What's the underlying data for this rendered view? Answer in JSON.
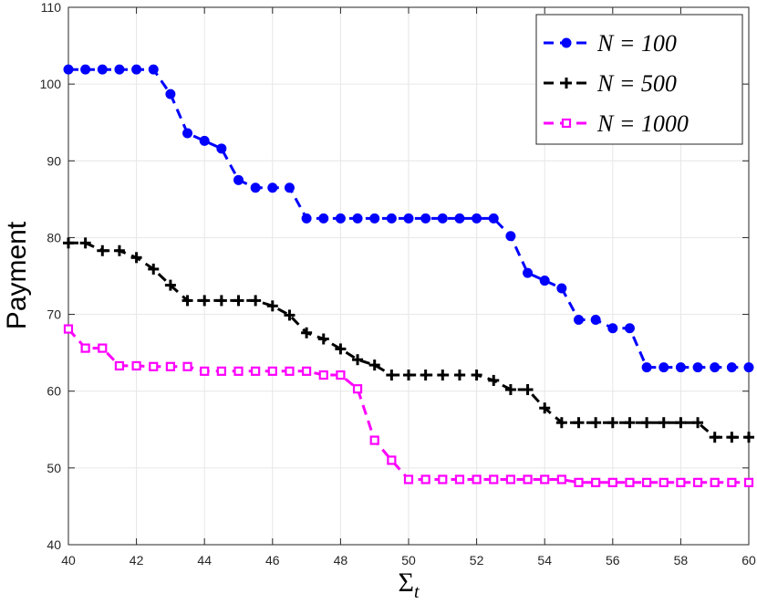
{
  "chart_data": {
    "type": "line",
    "xlabel": "Σ",
    "xlabel_subscript": "t",
    "ylabel": "Payment",
    "xlim": [
      40,
      60
    ],
    "ylim": [
      40,
      110
    ],
    "xticks": [
      40,
      42,
      44,
      46,
      48,
      50,
      52,
      54,
      56,
      58,
      60
    ],
    "yticks": [
      40,
      50,
      60,
      70,
      80,
      90,
      100,
      110
    ],
    "grid": true,
    "legend_position": "top-right",
    "series": [
      {
        "name": "N = 100",
        "color": "#0000ff",
        "marker": "filled-circle",
        "line": "dashed",
        "x": [
          40,
          40.5,
          41,
          41.5,
          42,
          42.5,
          43,
          43.5,
          44,
          44.5,
          45,
          45.5,
          46,
          46.5,
          47,
          47.5,
          48,
          48.5,
          49,
          49.5,
          50,
          50.5,
          51,
          51.5,
          52,
          52.5,
          53,
          53.5,
          54,
          54.5,
          55,
          55.5,
          56,
          56.5,
          57,
          57.5,
          58,
          58.5,
          59,
          59.5,
          60
        ],
        "y": [
          101.9,
          101.9,
          101.9,
          101.9,
          101.9,
          101.9,
          98.7,
          93.6,
          92.6,
          91.6,
          87.5,
          86.5,
          86.5,
          86.5,
          82.5,
          82.5,
          82.5,
          82.5,
          82.5,
          82.5,
          82.5,
          82.5,
          82.5,
          82.5,
          82.5,
          82.5,
          80.2,
          75.4,
          74.4,
          73.4,
          69.3,
          69.3,
          68.2,
          68.2,
          63.1,
          63.1,
          63.1,
          63.1,
          63.1,
          63.1,
          63.1
        ]
      },
      {
        "name": "N = 500",
        "color": "#000000",
        "marker": "plus",
        "line": "dashed",
        "x": [
          40,
          40.5,
          41,
          41.5,
          42,
          42.5,
          43,
          43.5,
          44,
          44.5,
          45,
          45.5,
          46,
          46.5,
          47,
          47.5,
          48,
          48.5,
          49,
          49.5,
          50,
          50.5,
          51,
          51.5,
          52,
          52.5,
          53,
          53.5,
          54,
          54.5,
          55,
          55.5,
          56,
          56.5,
          57,
          57.5,
          58,
          58.5,
          59,
          59.5,
          60
        ],
        "y": [
          79.3,
          79.3,
          78.3,
          78.3,
          77.4,
          75.9,
          73.8,
          71.8,
          71.8,
          71.8,
          71.8,
          71.8,
          71.1,
          69.9,
          67.6,
          66.8,
          65.5,
          64.1,
          63.4,
          62.1,
          62.1,
          62.1,
          62.1,
          62.1,
          62.1,
          61.4,
          60.2,
          60.2,
          57.8,
          55.9,
          55.9,
          55.9,
          55.9,
          55.9,
          55.9,
          55.9,
          55.9,
          55.9,
          54.0,
          54.0,
          54.0
        ]
      },
      {
        "name": "N = 1000",
        "color": "#ff00ff",
        "marker": "open-square",
        "line": "dashed",
        "x": [
          40,
          40.5,
          41,
          41.5,
          42,
          42.5,
          43,
          43.5,
          44,
          44.5,
          45,
          45.5,
          46,
          46.5,
          47,
          47.5,
          48,
          48.5,
          49,
          49.5,
          50,
          50.5,
          51,
          51.5,
          52,
          52.5,
          53,
          53.5,
          54,
          54.5,
          55,
          55.5,
          56,
          56.5,
          57,
          57.5,
          58,
          58.5,
          59,
          59.5,
          60
        ],
        "y": [
          68.1,
          65.6,
          65.6,
          63.3,
          63.3,
          63.2,
          63.2,
          63.2,
          62.6,
          62.6,
          62.6,
          62.6,
          62.6,
          62.6,
          62.6,
          62.1,
          62.1,
          60.3,
          53.6,
          51.0,
          48.5,
          48.5,
          48.5,
          48.5,
          48.5,
          48.5,
          48.5,
          48.5,
          48.5,
          48.5,
          48.1,
          48.1,
          48.1,
          48.1,
          48.1,
          48.1,
          48.1,
          48.1,
          48.1,
          48.1,
          48.1
        ]
      }
    ]
  }
}
